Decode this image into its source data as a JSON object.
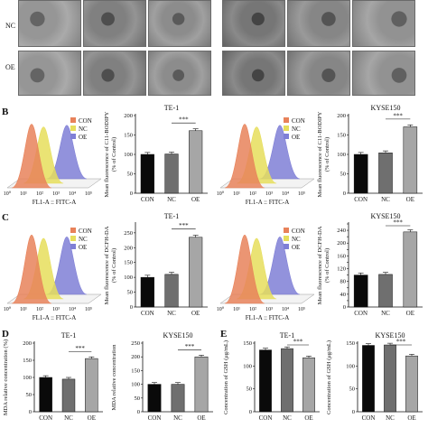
{
  "section_A": {
    "row_labels": [
      "NC",
      "OE"
    ]
  },
  "section_B": {
    "label": "B",
    "flow": [
      {
        "title": "TE-1",
        "xlabel": "FL1-A :: FITC-A",
        "legend": [
          "CON",
          "NC",
          "OE"
        ],
        "ticks": [
          "10⁰",
          "10¹",
          "10²",
          "10³",
          "10⁴",
          "10⁵"
        ]
      },
      {
        "title": "KYSE150",
        "xlabel": "FL1-A :: FITC-A",
        "legend": [
          "CON",
          "NC",
          "OE"
        ],
        "ticks": [
          "10⁰",
          "10¹",
          "10²",
          "10³",
          "10⁴",
          "10⁵"
        ]
      }
    ]
  },
  "section_C": {
    "label": "C",
    "flow": [
      {
        "title": "",
        "xlabel": "FL1-A :: FITC-A",
        "legend": [
          "CON",
          "NC",
          "OE"
        ],
        "ticks": [
          "10⁰",
          "10¹",
          "10²",
          "10³",
          "10⁴",
          "10⁵"
        ]
      },
      {
        "title": "",
        "xlabel": "FL1-A :: FITC-A",
        "legend": [
          "CON",
          "NC",
          "OE"
        ],
        "ticks": [
          "10⁰",
          "10¹",
          "10²",
          "10³",
          "10⁴",
          "10⁵"
        ]
      }
    ]
  },
  "section_D": {
    "label": "D"
  },
  "section_E": {
    "label": "E"
  },
  "colors": {
    "con": "#e8825a",
    "nc": "#e6de5c",
    "oe": "#7f7fd6",
    "bar_dark": "#0a0a0a",
    "bar_gray": "#6f6f6f",
    "bar_light": "#a6a6a6"
  },
  "chart_data": [
    {
      "type": "bar",
      "id": "B-TE1",
      "title": "TE-1",
      "ylabel": "Mean fluorescence of C11-BODIPY\n(% of Control)",
      "categories": [
        "CON",
        "NC",
        "OE"
      ],
      "values": [
        100,
        101,
        161
      ],
      "ylim": [
        0,
        200
      ],
      "ticks": [
        0,
        50,
        100,
        150,
        200
      ],
      "sig": "***"
    },
    {
      "type": "bar",
      "id": "B-KYSE",
      "title": "KYSE150",
      "ylabel": "Mean fluorescence of C11-BODIPY\n(% of Control)",
      "categories": [
        "CON",
        "NC",
        "OE"
      ],
      "values": [
        100,
        104,
        171
      ],
      "ylim": [
        0,
        200
      ],
      "ticks": [
        0,
        50,
        100,
        150,
        200
      ],
      "sig": "***"
    },
    {
      "type": "bar",
      "id": "C-TE1",
      "title": "TE-1",
      "ylabel": "Mean fluorescence of DCFH-DA\n(% of Control)",
      "categories": [
        "CON",
        "NC",
        "OE"
      ],
      "values": [
        100,
        110,
        235
      ],
      "ylim": [
        0,
        280
      ],
      "ticks": [
        0,
        50,
        100,
        150,
        200,
        250
      ],
      "sig": "***"
    },
    {
      "type": "bar",
      "id": "C-KYSE",
      "title": "KYSE150",
      "ylabel": "Mean fluorescence of DCFH-DA\n(% of Control)",
      "categories": [
        "CON",
        "NC",
        "OE"
      ],
      "values": [
        100,
        102,
        235
      ],
      "ylim": [
        0,
        260
      ],
      "ticks": [
        0,
        20,
        40,
        60,
        80,
        100,
        120,
        140,
        160,
        180,
        200,
        220,
        240,
        260
      ],
      "sig": "***"
    },
    {
      "type": "bar",
      "id": "D-TE1",
      "title": "TE-1",
      "ylabel": "MDA relative concentration (%)",
      "categories": [
        "CON",
        "NC",
        "OE"
      ],
      "values": [
        100,
        95,
        155
      ],
      "ylim": [
        0,
        200
      ],
      "ticks": [
        0,
        50,
        100,
        150,
        200
      ],
      "sig": "***"
    },
    {
      "type": "bar",
      "id": "D-KYSE",
      "title": "KYSE150",
      "ylabel": "MDA relative concentration",
      "categories": [
        "CON",
        "NC",
        "OE"
      ],
      "values": [
        100,
        100,
        200
      ],
      "ylim": [
        0,
        250
      ],
      "ticks": [
        0,
        50,
        100,
        150,
        200,
        250
      ],
      "sig": "***"
    },
    {
      "type": "bar",
      "id": "E-TE1",
      "title": "TE-1",
      "ylabel": "Concentration of GSH (μg/mL)",
      "categories": [
        "CON",
        "NC",
        "OE"
      ],
      "values": [
        135,
        138,
        118
      ],
      "ylim": [
        0,
        150
      ],
      "ticks": [
        0,
        50,
        100,
        150
      ],
      "sig": "***"
    },
    {
      "type": "bar",
      "id": "E-KYSE",
      "title": "KYSE150",
      "ylabel": "Concentration of GSH (μg/mL)",
      "categories": [
        "CON",
        "NC",
        "OE"
      ],
      "values": [
        145,
        146,
        122
      ],
      "ylim": [
        0,
        150
      ],
      "ticks": [
        0,
        50,
        100,
        150
      ],
      "sig": "***"
    }
  ]
}
